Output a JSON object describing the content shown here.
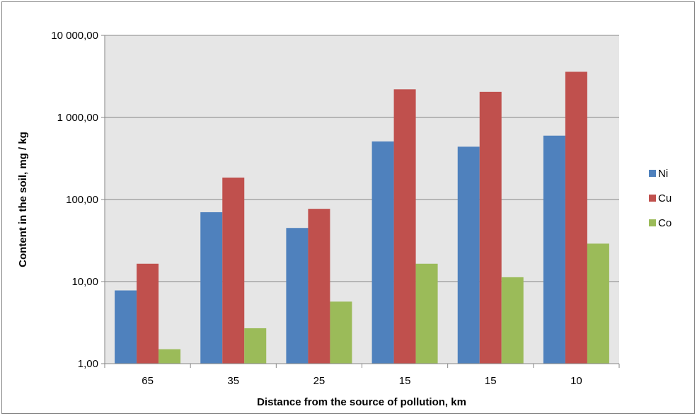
{
  "chart_data": {
    "type": "bar",
    "categories": [
      "65",
      "35",
      "25",
      "15",
      "15",
      "10"
    ],
    "series": [
      {
        "name": "Ni",
        "color": "#4F81BD",
        "values": [
          7.8,
          70,
          45,
          510,
          440,
          600
        ]
      },
      {
        "name": "Cu",
        "color": "#C0504D",
        "values": [
          16.5,
          185,
          77,
          2200,
          2050,
          3600
        ]
      },
      {
        "name": "Co",
        "color": "#9BBB59",
        "values": [
          1.5,
          2.7,
          5.7,
          16.5,
          11.3,
          29
        ]
      }
    ],
    "xlabel": "Distance from the source of pollution,  km",
    "ylabel": "Content in the soil, mg / kg",
    "yscale": "log",
    "ylim": [
      1,
      10000
    ],
    "yticks": [
      1,
      10,
      100,
      1000,
      10000
    ],
    "ytick_labels": [
      "1,00",
      "10,00",
      "100,00",
      "1 000,00",
      "10 000,00"
    ],
    "grid": true,
    "legend_position": "right",
    "plot_background": "#E6E6E6"
  }
}
